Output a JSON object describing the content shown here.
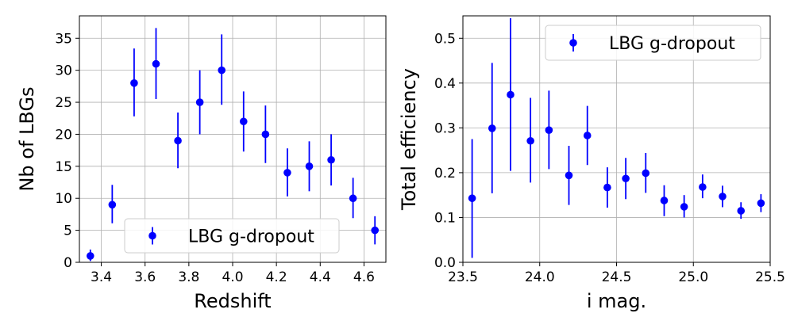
{
  "colors": {
    "marker": "#0000ff",
    "errorbar": "#0000ff",
    "grid": "#b0b0b0",
    "axes": "#000000",
    "legend_border": "#cccccc"
  },
  "chart_data": [
    {
      "type": "scatter",
      "xlabel": "Redshift",
      "ylabel": "Nb of LBGs",
      "xlim": [
        3.3,
        4.7
      ],
      "ylim": [
        0,
        38.5
      ],
      "xticks": [
        3.4,
        3.6,
        3.8,
        4.0,
        4.2,
        4.4,
        4.6
      ],
      "xtick_labels": [
        "3.4",
        "3.6",
        "3.8",
        "4.0",
        "4.2",
        "4.4",
        "4.6"
      ],
      "yticks": [
        0,
        5,
        10,
        15,
        20,
        25,
        30,
        35
      ],
      "ytick_labels": [
        "0",
        "5",
        "10",
        "15",
        "20",
        "25",
        "30",
        "35"
      ],
      "grid": true,
      "legend": {
        "position": "lower-right",
        "entries": [
          "LBG g-dropout"
        ]
      },
      "series": [
        {
          "name": "LBG g-dropout",
          "x": [
            3.35,
            3.45,
            3.55,
            3.65,
            3.75,
            3.85,
            3.95,
            4.05,
            4.15,
            4.25,
            4.35,
            4.45,
            4.55,
            4.65
          ],
          "y": [
            1,
            9,
            28,
            31,
            19,
            25,
            30,
            22,
            20,
            14,
            15,
            16,
            10,
            5
          ],
          "yerr_low": [
            0.8,
            2.9,
            5.2,
            5.5,
            4.3,
            5.0,
            5.4,
            4.7,
            4.5,
            3.7,
            3.9,
            4.0,
            3.1,
            2.2
          ],
          "yerr_high": [
            1.0,
            3.1,
            5.4,
            5.6,
            4.4,
            5.0,
            5.6,
            4.7,
            4.5,
            3.8,
            3.9,
            4.0,
            3.2,
            2.2
          ]
        }
      ]
    },
    {
      "type": "scatter",
      "xlabel": "i mag.",
      "ylabel": "Total efficiency",
      "xlim": [
        23.5,
        25.5
      ],
      "ylim": [
        0,
        0.55
      ],
      "xticks": [
        23.5,
        24.0,
        24.5,
        25.0,
        25.5
      ],
      "xtick_labels": [
        "23.5",
        "24.0",
        "24.5",
        "25.0",
        "25.5"
      ],
      "yticks": [
        0.0,
        0.1,
        0.2,
        0.3,
        0.4,
        0.5
      ],
      "ytick_labels": [
        "0.0",
        "0.1",
        "0.2",
        "0.3",
        "0.4",
        "0.5"
      ],
      "grid": true,
      "legend": {
        "position": "upper-right",
        "entries": [
          "LBG g-dropout"
        ]
      },
      "series": [
        {
          "name": "LBG g-dropout",
          "x": [
            23.56,
            23.69,
            23.81,
            23.94,
            24.06,
            24.19,
            24.31,
            24.44,
            24.56,
            24.69,
            24.81,
            24.94,
            25.06,
            25.19,
            25.31,
            25.44
          ],
          "y": [
            0.143,
            0.299,
            0.374,
            0.271,
            0.295,
            0.194,
            0.283,
            0.167,
            0.187,
            0.199,
            0.138,
            0.124,
            0.168,
            0.147,
            0.115,
            0.132
          ],
          "yerr_low": [
            0.133,
            0.145,
            0.17,
            0.093,
            0.087,
            0.066,
            0.066,
            0.045,
            0.046,
            0.044,
            0.035,
            0.024,
            0.025,
            0.024,
            0.018,
            0.02
          ],
          "yerr_high": [
            0.132,
            0.146,
            0.171,
            0.096,
            0.088,
            0.066,
            0.066,
            0.045,
            0.046,
            0.045,
            0.034,
            0.026,
            0.028,
            0.024,
            0.019,
            0.02
          ]
        }
      ]
    }
  ]
}
